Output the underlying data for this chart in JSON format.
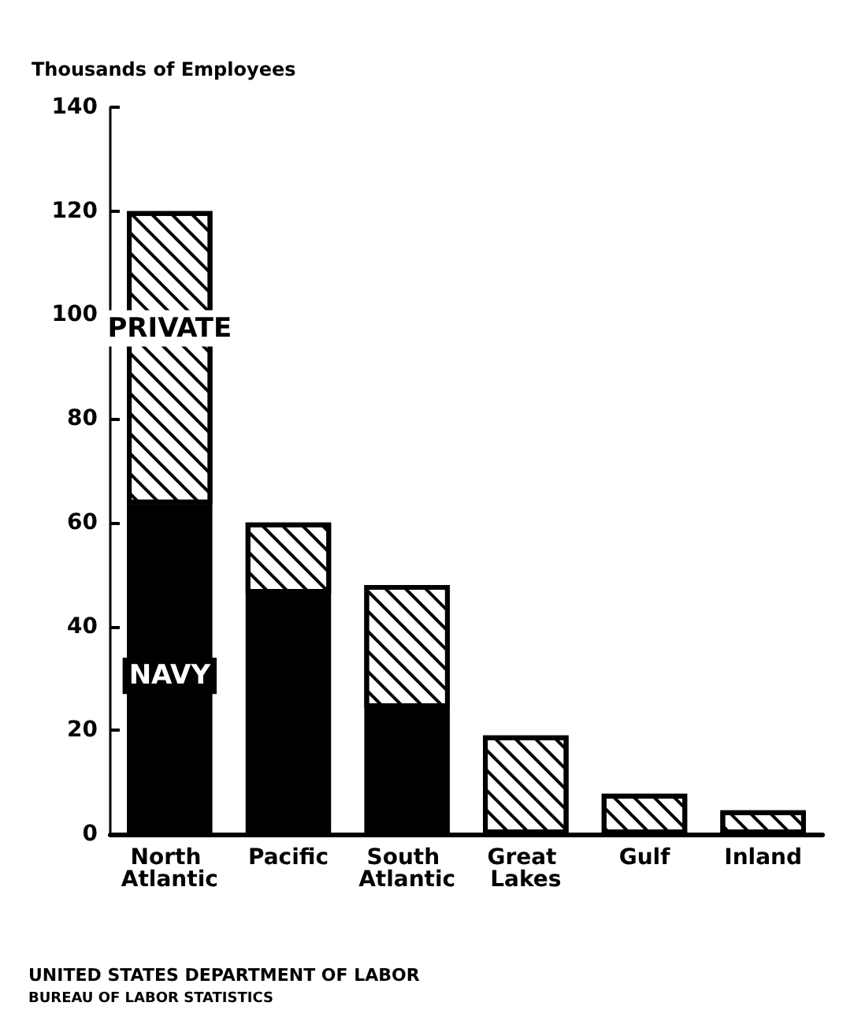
{
  "chart_data": {
    "type": "bar",
    "stacked": true,
    "ylabel": "Thousands of Employees",
    "categories": [
      "North Atlantic",
      "Pacific",
      "South Atlantic",
      "Great Lakes",
      "Gulf",
      "Inland"
    ],
    "series": [
      {
        "name": "NAVY",
        "color": "#000000",
        "values": [
          63.5,
          46.3,
          24.3,
          0,
          0,
          0
        ]
      },
      {
        "name": "PRIVATE",
        "color": "#ffffff",
        "values": [
          56.5,
          13.7,
          23.7,
          19,
          7.8,
          4.6
        ]
      }
    ],
    "ylim": [
      0,
      140
    ],
    "yticks": [
      0,
      20,
      40,
      60,
      80,
      100,
      120,
      140
    ],
    "grid": false,
    "legend": false,
    "annotations": [
      "UNITED STATES DEPARTMENT OF LABOR",
      "BUREAU OF LABOR STATISTICS"
    ]
  }
}
